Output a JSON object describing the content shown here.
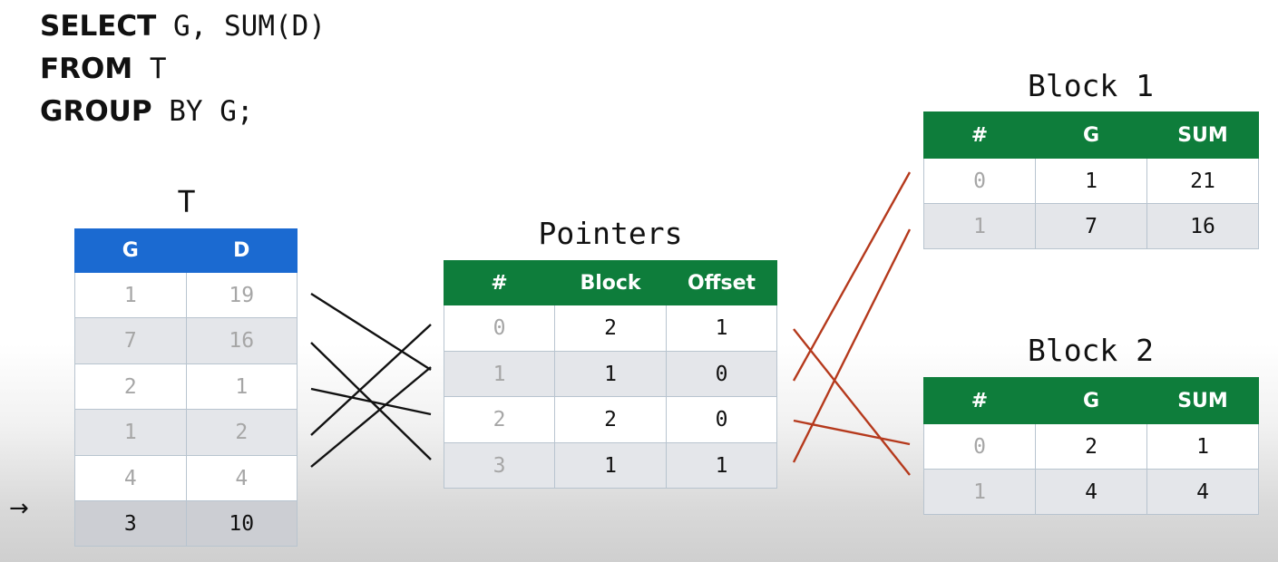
{
  "sql": {
    "line1_kw": "SELECT",
    "line1_rest": " G, SUM(D)",
    "line2_kw": "FROM",
    "line2_rest": " T",
    "line3_kw": "GROUP",
    "line3_rest": " BY G;"
  },
  "table_t": {
    "title": "T",
    "headers": [
      "G",
      "D"
    ],
    "rows": [
      [
        "1",
        "19"
      ],
      [
        "7",
        "16"
      ],
      [
        "2",
        "1"
      ],
      [
        "1",
        "2"
      ],
      [
        "4",
        "4"
      ],
      [
        "3",
        "10"
      ]
    ]
  },
  "pointers": {
    "title": "Pointers",
    "headers": [
      "#",
      "Block",
      "Offset"
    ],
    "rows": [
      [
        "0",
        "2",
        "1"
      ],
      [
        "1",
        "1",
        "0"
      ],
      [
        "2",
        "2",
        "0"
      ],
      [
        "3",
        "1",
        "1"
      ]
    ]
  },
  "block1": {
    "title": "Block 1",
    "headers": [
      "#",
      "G",
      "SUM"
    ],
    "rows": [
      [
        "0",
        "1",
        "21"
      ],
      [
        "1",
        "7",
        "16"
      ]
    ]
  },
  "block2": {
    "title": "Block 2",
    "headers": [
      "#",
      "G",
      "SUM"
    ],
    "rows": [
      [
        "0",
        "2",
        "1"
      ],
      [
        "1",
        "4",
        "4"
      ]
    ]
  },
  "current_row_arrow": "→",
  "colors": {
    "t_header": "#1b6ad1",
    "green_header": "#0e7d3b",
    "pointer_lines": "#111111",
    "block_lines": "#b5391c"
  }
}
